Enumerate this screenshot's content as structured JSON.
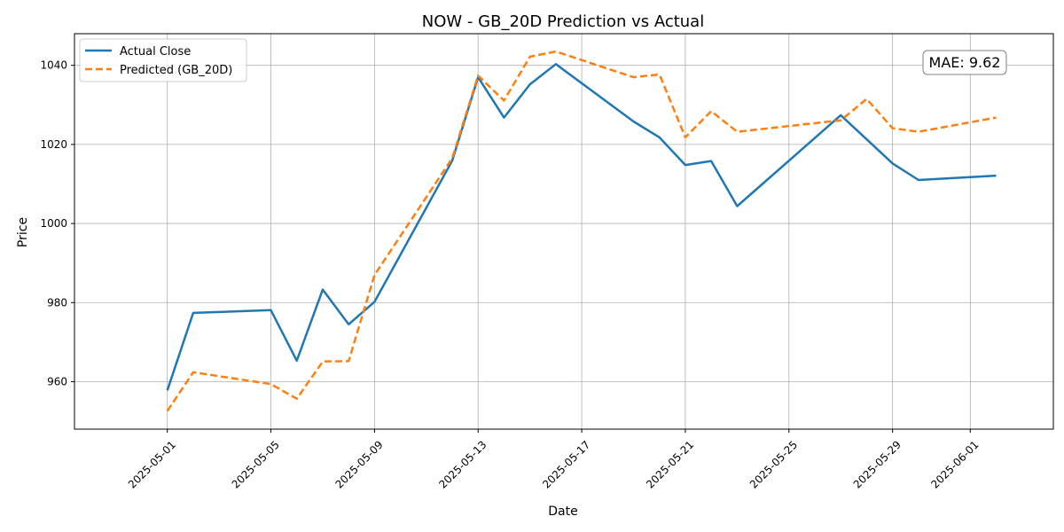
{
  "chart_data": {
    "type": "line",
    "title": "NOW - GB_20D Prediction vs Actual",
    "xlabel": "Date",
    "ylabel": "Price",
    "x_range": [
      "2025-04-27T10:00",
      "2025-06-04T05:00"
    ],
    "ylim": [
      948,
      1048
    ],
    "xticks": [
      "2025-05-01",
      "2025-05-05",
      "2025-05-09",
      "2025-05-13",
      "2025-05-17",
      "2025-05-21",
      "2025-05-25",
      "2025-05-29",
      "2025-06-01"
    ],
    "yticks": [
      960,
      980,
      1000,
      1020,
      1040
    ],
    "grid": true,
    "legend_position": "top-left",
    "annotation": "MAE: 9.62",
    "series": [
      {
        "name": "Actual Close",
        "color": "#1f77b4",
        "style": "solid",
        "x": [
          "2025-05-01",
          "2025-05-02",
          "2025-05-05",
          "2025-05-06",
          "2025-05-07",
          "2025-05-08",
          "2025-05-09",
          "2025-05-12",
          "2025-05-13",
          "2025-05-14",
          "2025-05-15",
          "2025-05-16",
          "2025-05-19",
          "2025-05-20",
          "2025-05-21",
          "2025-05-22",
          "2025-05-23",
          "2025-05-27",
          "2025-05-28",
          "2025-05-29",
          "2025-05-30",
          "2025-06-02"
        ],
        "y": [
          957.8,
          977.4,
          978.1,
          965.3,
          983.3,
          974.5,
          980.2,
          1015.9,
          1037.0,
          1026.8,
          1035.2,
          1040.3,
          1025.8,
          1021.8,
          1014.8,
          1015.8,
          1004.4,
          1027.4,
          1021.3,
          1015.2,
          1011.0,
          1012.1
        ]
      },
      {
        "name": "Predicted (GB_20D)",
        "color": "#ff7f0e",
        "style": "dashed",
        "x": [
          "2025-05-01",
          "2025-05-02",
          "2025-05-05",
          "2025-05-06",
          "2025-05-07",
          "2025-05-08",
          "2025-05-09",
          "2025-05-12",
          "2025-05-13",
          "2025-05-14",
          "2025-05-15",
          "2025-05-16",
          "2025-05-19",
          "2025-05-20",
          "2025-05-21",
          "2025-05-22",
          "2025-05-23",
          "2025-05-27",
          "2025-05-28",
          "2025-05-29",
          "2025-05-30",
          "2025-06-02"
        ],
        "y": [
          952.6,
          962.4,
          959.4,
          955.7,
          965.1,
          965.2,
          987.0,
          1016.5,
          1037.4,
          1031.1,
          1042.2,
          1043.5,
          1037.0,
          1037.7,
          1021.8,
          1028.4,
          1023.2,
          1026.1,
          1031.5,
          1024.1,
          1023.2,
          1026.8
        ]
      }
    ]
  }
}
